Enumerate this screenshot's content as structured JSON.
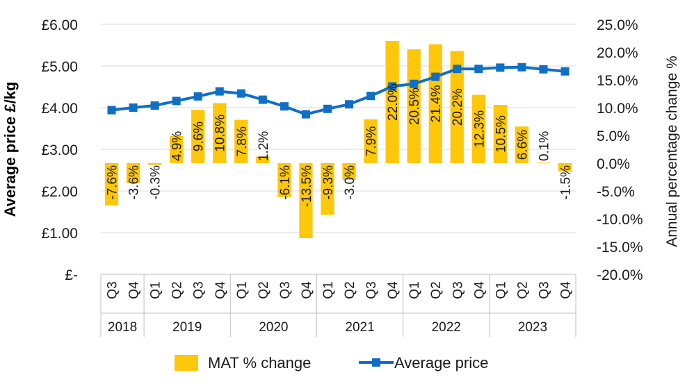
{
  "chart_data": {
    "type": "bar+line",
    "categories": [
      "Q3",
      "Q4",
      "Q1",
      "Q2",
      "Q3",
      "Q4",
      "Q1",
      "Q2",
      "Q3",
      "Q4",
      "Q1",
      "Q2",
      "Q3",
      "Q4",
      "Q1",
      "Q2",
      "Q3",
      "Q4",
      "Q1",
      "Q2",
      "Q3",
      "Q4"
    ],
    "year_groups": [
      {
        "label": "2018",
        "count": 2
      },
      {
        "label": "2019",
        "count": 4
      },
      {
        "label": "2020",
        "count": 4
      },
      {
        "label": "2021",
        "count": 4
      },
      {
        "label": "2022",
        "count": 4
      },
      {
        "label": "2023",
        "count": 4
      }
    ],
    "series": [
      {
        "name": "MAT % change",
        "type": "bar",
        "axis": "right",
        "color": "#FFC709",
        "values": [
          -7.6,
          -3.6,
          -0.3,
          4.9,
          9.6,
          10.8,
          7.8,
          1.2,
          -6.1,
          -13.5,
          -9.3,
          -3.0,
          7.9,
          22.0,
          20.5,
          21.4,
          20.2,
          12.3,
          10.5,
          6.6,
          0.1,
          -1.5
        ],
        "labels": [
          "-7.6%",
          "-3.6%",
          "-0.3%",
          "4.9%",
          "9.6%",
          "10.8%",
          "7.8%",
          "1.2%",
          "-6.1%",
          "-13.5%",
          "-9.3%",
          "-3.0%",
          "7.9%",
          "22.0%",
          "20.5%",
          "21.4%",
          "20.2%",
          "12.3%",
          "10.5%",
          "6.6%",
          "0.1%",
          "-1.5%"
        ]
      },
      {
        "name": "Average price",
        "type": "line",
        "axis": "left",
        "color": "#0F6FC6",
        "values": [
          3.94,
          4.0,
          4.05,
          4.16,
          4.27,
          4.39,
          4.34,
          4.19,
          4.03,
          3.84,
          3.97,
          4.08,
          4.28,
          4.51,
          4.57,
          4.74,
          4.93,
          4.93,
          4.96,
          4.97,
          4.92,
          4.87
        ]
      }
    ],
    "left_axis": {
      "label": "Average price £/kg",
      "range": [
        0,
        6
      ],
      "ticks": [
        "£-",
        "£1.00",
        "£2.00",
        "£3.00",
        "£4.00",
        "£5.00",
        "£6.00"
      ]
    },
    "right_axis": {
      "label": "Annual percentage change %",
      "range": [
        -20,
        25
      ],
      "ticks": [
        "-20.0%",
        "-15.0%",
        "-10.0%",
        "-5.0%",
        "0.0%",
        "5.0%",
        "10.0%",
        "15.0%",
        "20.0%",
        "25.0%"
      ]
    },
    "grid": true,
    "legend_position": "bottom",
    "grid_color": "#D9D9D9"
  }
}
